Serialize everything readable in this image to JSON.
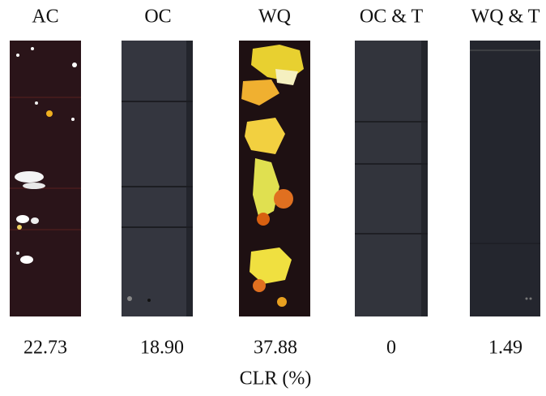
{
  "panels": [
    {
      "label": "AC",
      "clr": "22.73"
    },
    {
      "label": "OC",
      "clr": "18.90"
    },
    {
      "label": "WQ",
      "clr": "37.88"
    },
    {
      "label": "OC & T",
      "clr": "0"
    },
    {
      "label": "WQ & T",
      "clr": "1.49"
    }
  ],
  "caption": "CLR (%)"
}
